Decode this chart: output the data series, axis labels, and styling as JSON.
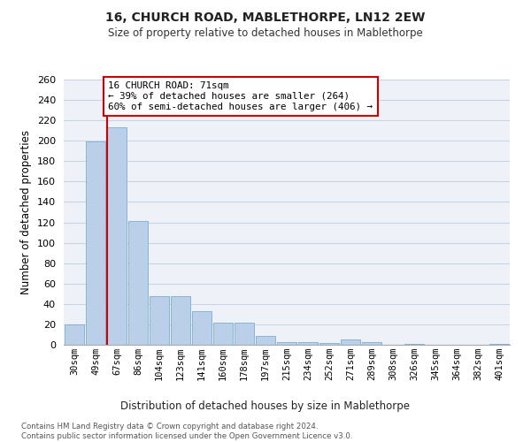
{
  "title1": "16, CHURCH ROAD, MABLETHORPE, LN12 2EW",
  "title2": "Size of property relative to detached houses in Mablethorpe",
  "xlabel": "Distribution of detached houses by size in Mablethorpe",
  "ylabel": "Number of detached properties",
  "categories": [
    "30sqm",
    "49sqm",
    "67sqm",
    "86sqm",
    "104sqm",
    "123sqm",
    "141sqm",
    "160sqm",
    "178sqm",
    "197sqm",
    "215sqm",
    "234sqm",
    "252sqm",
    "271sqm",
    "289sqm",
    "308sqm",
    "326sqm",
    "345sqm",
    "364sqm",
    "382sqm",
    "401sqm"
  ],
  "values": [
    20,
    199,
    213,
    121,
    48,
    48,
    33,
    22,
    22,
    9,
    3,
    3,
    2,
    5,
    3,
    0,
    1,
    0,
    0,
    0,
    1
  ],
  "bar_color": "#bad0e8",
  "bar_edge_color": "#7aadd4",
  "property_line_color": "#cc0000",
  "annotation_text": "16 CHURCH ROAD: 71sqm\n← 39% of detached houses are smaller (264)\n60% of semi-detached houses are larger (406) →",
  "annotation_box_color": "#ffffff",
  "annotation_box_edge": "#cc0000",
  "footer": "Contains HM Land Registry data © Crown copyright and database right 2024.\nContains public sector information licensed under the Open Government Licence v3.0.",
  "ylim_max": 260,
  "ytick_interval": 20,
  "grid_color": "#c8d4e4",
  "bg_color": "#eef2f8"
}
